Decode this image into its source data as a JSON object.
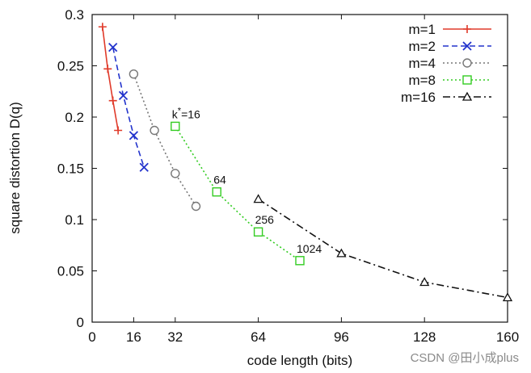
{
  "chart_data": {
    "type": "line",
    "title": "",
    "xlabel": "code length (bits)",
    "ylabel": "square distortion D(q)",
    "xlim": [
      0,
      160
    ],
    "ylim": [
      0,
      0.3
    ],
    "x_ticks": [
      {
        "value": 0,
        "label": "0"
      },
      {
        "value": 16,
        "label": "16"
      },
      {
        "value": 32,
        "label": "32"
      },
      {
        "value": 64,
        "label": "64"
      },
      {
        "value": 96,
        "label": "96"
      },
      {
        "value": 128,
        "label": "128"
      },
      {
        "value": 160,
        "label": "160"
      }
    ],
    "y_ticks": [
      {
        "value": 0,
        "label": "0"
      },
      {
        "value": 0.05,
        "label": "0.05"
      },
      {
        "value": 0.1,
        "label": "0.1"
      },
      {
        "value": 0.15,
        "label": "0.15"
      },
      {
        "value": 0.2,
        "label": "0.2"
      },
      {
        "value": 0.25,
        "label": "0.25"
      },
      {
        "value": 0.3,
        "label": "0.3"
      }
    ],
    "grid": false,
    "legend_position": "top-right",
    "series": [
      {
        "name": "m=1",
        "color": "#e03a2a",
        "dash": "solid",
        "marker": "plus",
        "points": [
          [
            4,
            0.288
          ],
          [
            6,
            0.247
          ],
          [
            8,
            0.216
          ],
          [
            10,
            0.187
          ]
        ]
      },
      {
        "name": "m=2",
        "color": "#2233cc",
        "dash": "dashed",
        "marker": "x",
        "points": [
          [
            8,
            0.268
          ],
          [
            12,
            0.221
          ],
          [
            16,
            0.182
          ],
          [
            20,
            0.151
          ]
        ]
      },
      {
        "name": "m=4",
        "color": "#777777",
        "dash": "dotted",
        "marker": "circle",
        "points": [
          [
            16,
            0.242
          ],
          [
            24,
            0.187
          ],
          [
            32,
            0.145
          ],
          [
            40,
            0.113
          ]
        ]
      },
      {
        "name": "m=8",
        "color": "#33cc22",
        "dash": "dotted",
        "marker": "square",
        "points": [
          [
            32,
            0.191
          ],
          [
            48,
            0.127
          ],
          [
            64,
            0.088
          ],
          [
            80,
            0.06
          ]
        ]
      },
      {
        "name": "m=16",
        "color": "#111111",
        "dash": "dashdot",
        "marker": "triangle",
        "points": [
          [
            64,
            0.12
          ],
          [
            96,
            0.067
          ],
          [
            128,
            0.039
          ],
          [
            160,
            0.024
          ]
        ]
      }
    ],
    "annotations": [
      {
        "text": "k*=16",
        "x": 32,
        "y": 0.191
      },
      {
        "text": "64",
        "x": 48,
        "y": 0.127
      },
      {
        "text": "256",
        "x": 64,
        "y": 0.088
      },
      {
        "text": "1024",
        "x": 80,
        "y": 0.06
      }
    ]
  },
  "watermark": "CSDN @田小成plus"
}
